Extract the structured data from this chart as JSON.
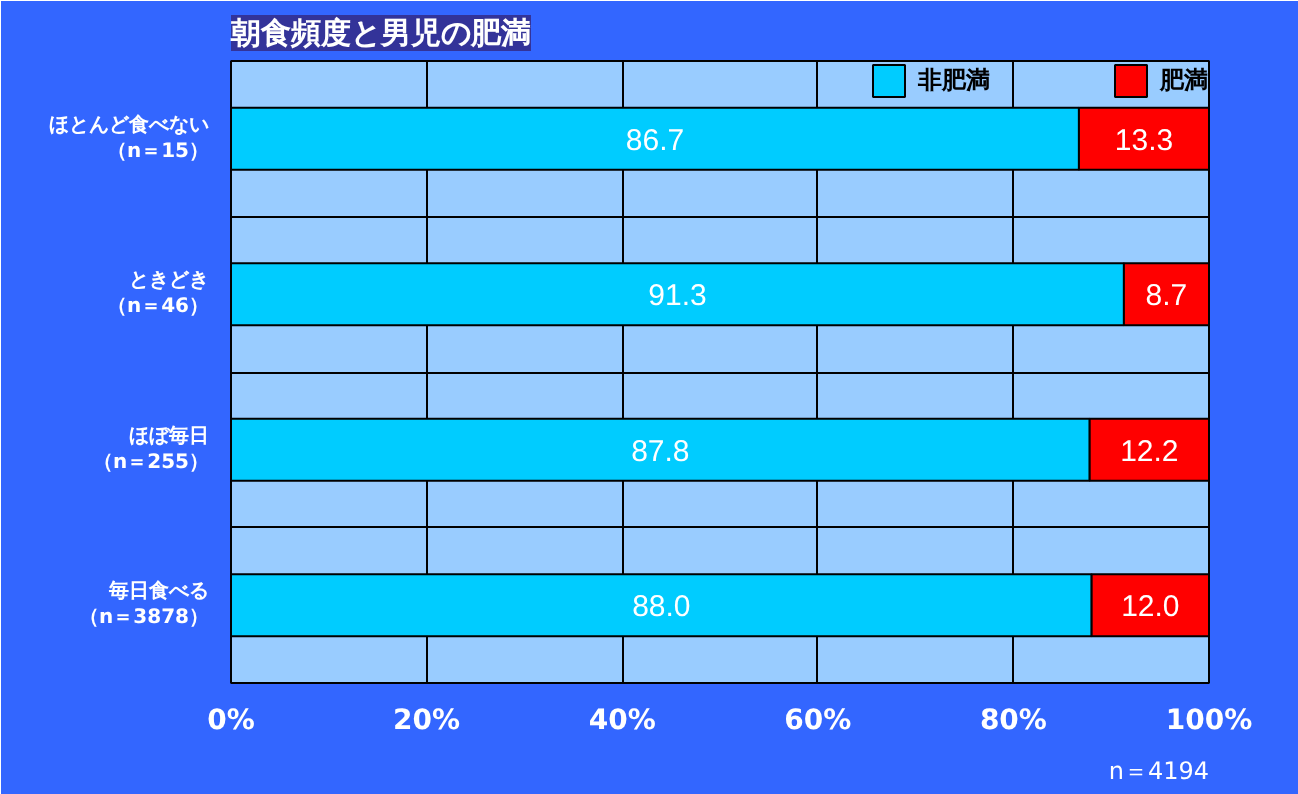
{
  "chart_data": {
    "type": "bar",
    "orientation": "horizontal",
    "stacked": true,
    "title": "朝食頻度と男児の肥満",
    "categories": [
      "ほとんど食べない（n＝15）",
      "ときどき（n＝46）",
      "ほぼ毎日（n＝255）",
      "毎日食べる（n＝3878）"
    ],
    "series": [
      {
        "name": "非肥満",
        "color": "#00ccff",
        "values": [
          86.7,
          91.3,
          87.8,
          88.0
        ],
        "value_labels": [
          "86.7",
          "91.3",
          "87.8",
          "88.0"
        ]
      },
      {
        "name": "肥満",
        "color": "#ff0000",
        "values": [
          13.3,
          8.7,
          12.2,
          12.0
        ],
        "value_labels": [
          "13.3",
          "8.7",
          "12.2",
          "12.0"
        ]
      }
    ],
    "xlim": [
      0,
      100
    ],
    "xticks": [
      {
        "value": 0,
        "label": "0%"
      },
      {
        "value": 20,
        "label": "20%"
      },
      {
        "value": 40,
        "label": "40%"
      },
      {
        "value": 60,
        "label": "60%"
      },
      {
        "value": 80,
        "label": "80%"
      },
      {
        "value": 100,
        "label": "100%"
      }
    ],
    "grid": true,
    "legend": "top",
    "annotations": [
      "n＝4194"
    ]
  }
}
